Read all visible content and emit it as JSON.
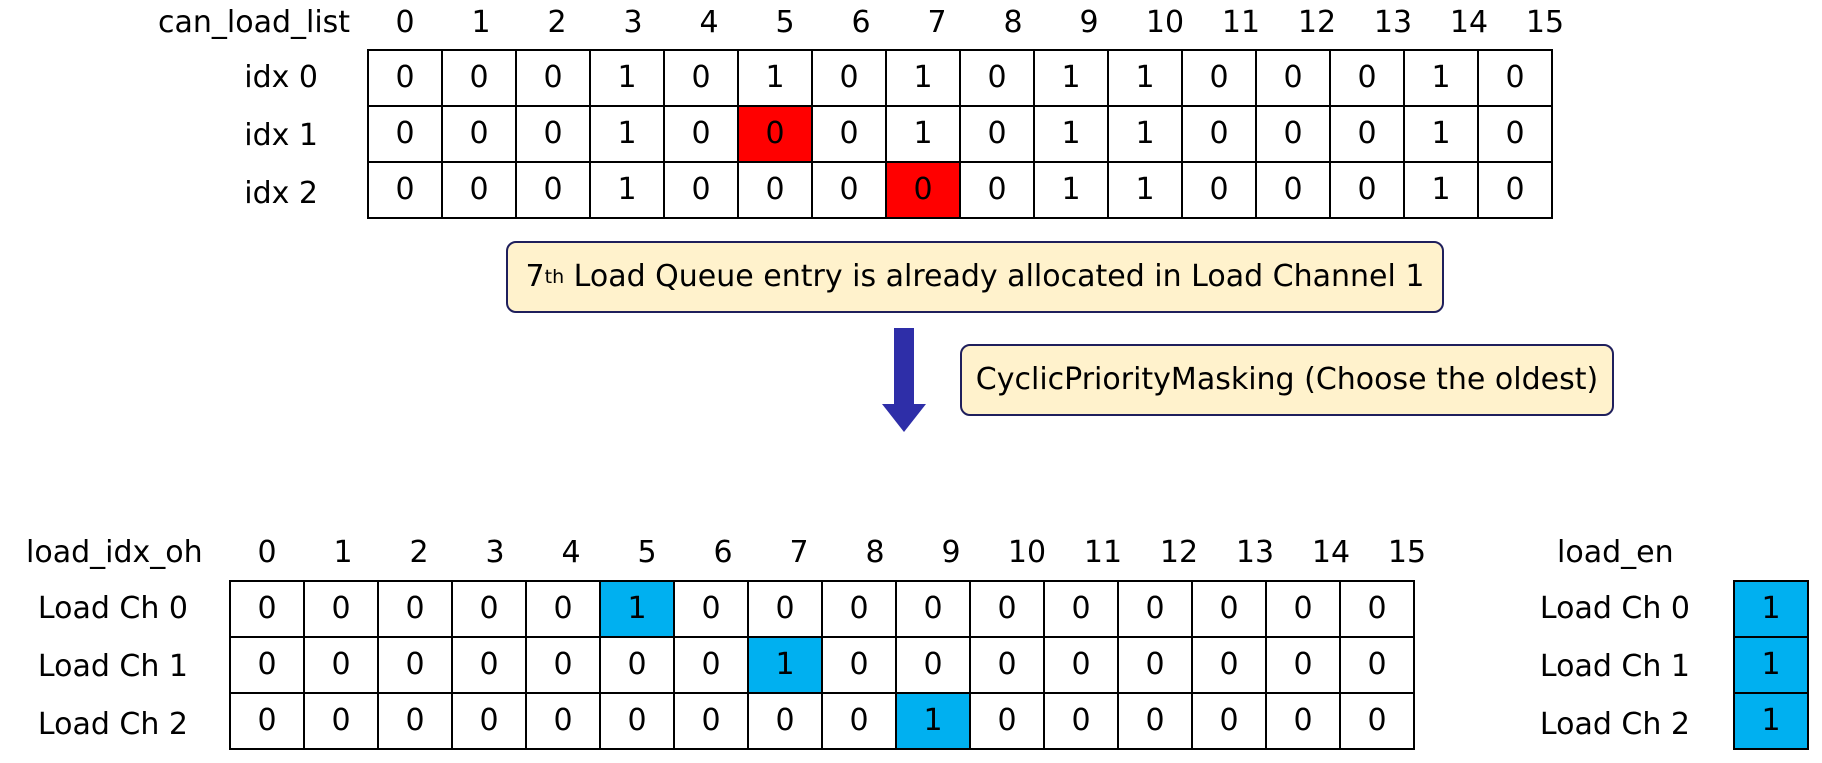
{
  "top": {
    "title": "can_load_list",
    "columns": [
      "0",
      "1",
      "2",
      "3",
      "4",
      "5",
      "6",
      "7",
      "8",
      "9",
      "10",
      "11",
      "12",
      "13",
      "14",
      "15"
    ],
    "rows": [
      {
        "label": "idx 0",
        "values": [
          "0",
          "0",
          "0",
          "1",
          "0",
          "1",
          "0",
          "1",
          "0",
          "1",
          "1",
          "0",
          "0",
          "0",
          "1",
          "0"
        ],
        "highlight": null
      },
      {
        "label": "idx 1",
        "values": [
          "0",
          "0",
          "0",
          "1",
          "0",
          "0",
          "0",
          "1",
          "0",
          "1",
          "1",
          "0",
          "0",
          "0",
          "1",
          "0"
        ],
        "highlight": 5
      },
      {
        "label": "idx 2",
        "values": [
          "0",
          "0",
          "0",
          "1",
          "0",
          "0",
          "0",
          "0",
          "0",
          "1",
          "1",
          "0",
          "0",
          "0",
          "1",
          "0"
        ],
        "highlight": 7
      }
    ],
    "highlight_color": "#ff0000"
  },
  "callout1": {
    "sup_num": "7",
    "sup": "th",
    "text": " Load Queue entry is already allocated in Load Channel 1"
  },
  "callout2": {
    "text": "CyclicPriorityMasking (Choose the oldest)"
  },
  "bottom": {
    "title": "load_idx_oh",
    "columns": [
      "0",
      "1",
      "2",
      "3",
      "4",
      "5",
      "6",
      "7",
      "8",
      "9",
      "10",
      "11",
      "12",
      "13",
      "14",
      "15"
    ],
    "rows": [
      {
        "label": "Load Ch 0",
        "values": [
          "0",
          "0",
          "0",
          "0",
          "0",
          "1",
          "0",
          "0",
          "0",
          "0",
          "0",
          "0",
          "0",
          "0",
          "0",
          "0"
        ],
        "highlight": 5
      },
      {
        "label": "Load Ch 1",
        "values": [
          "0",
          "0",
          "0",
          "0",
          "0",
          "0",
          "0",
          "1",
          "0",
          "0",
          "0",
          "0",
          "0",
          "0",
          "0",
          "0"
        ],
        "highlight": 7
      },
      {
        "label": "Load Ch 2",
        "values": [
          "0",
          "0",
          "0",
          "0",
          "0",
          "0",
          "0",
          "0",
          "0",
          "1",
          "0",
          "0",
          "0",
          "0",
          "0",
          "0"
        ],
        "highlight": 9
      }
    ],
    "highlight_color": "#00b0f0"
  },
  "load_en": {
    "title": "load_en",
    "rows": [
      {
        "label": "Load Ch 0",
        "value": "1"
      },
      {
        "label": "Load Ch 1",
        "value": "1"
      },
      {
        "label": "Load Ch 2",
        "value": "1"
      }
    ]
  },
  "colors": {
    "callout_fill": "#fff2cc",
    "arrow": "#2e2ea8",
    "red": "#ff0000",
    "blue": "#00b0f0"
  },
  "icons": {
    "arrow": "down-arrow-icon"
  }
}
